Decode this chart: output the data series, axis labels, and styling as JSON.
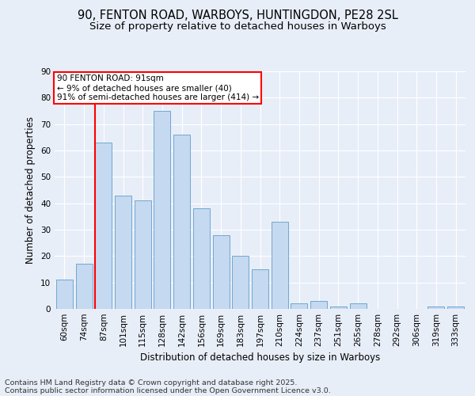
{
  "title_line1": "90, FENTON ROAD, WARBOYS, HUNTINGDON, PE28 2SL",
  "title_line2": "Size of property relative to detached houses in Warboys",
  "xlabel": "Distribution of detached houses by size in Warboys",
  "ylabel": "Number of detached properties",
  "categories": [
    "60sqm",
    "74sqm",
    "87sqm",
    "101sqm",
    "115sqm",
    "128sqm",
    "142sqm",
    "156sqm",
    "169sqm",
    "183sqm",
    "197sqm",
    "210sqm",
    "224sqm",
    "237sqm",
    "251sqm",
    "265sqm",
    "278sqm",
    "292sqm",
    "306sqm",
    "319sqm",
    "333sqm"
  ],
  "values": [
    11,
    17,
    63,
    43,
    41,
    75,
    66,
    38,
    28,
    20,
    15,
    33,
    2,
    3,
    1,
    2,
    0,
    0,
    0,
    1,
    1
  ],
  "bar_color": "#c5d9f0",
  "bar_edge_color": "#6fa8d0",
  "vline_index": 2,
  "vline_color": "red",
  "annotation_line1": "90 FENTON ROAD: 91sqm",
  "annotation_line2": "← 9% of detached houses are smaller (40)",
  "annotation_line3": "91% of semi-detached houses are larger (414) →",
  "annotation_box_facecolor": "white",
  "annotation_box_edgecolor": "red",
  "ylim": [
    0,
    90
  ],
  "yticks": [
    0,
    10,
    20,
    30,
    40,
    50,
    60,
    70,
    80,
    90
  ],
  "background_color": "#e8eef8",
  "grid_color": "white",
  "footer_line1": "Contains HM Land Registry data © Crown copyright and database right 2025.",
  "footer_line2": "Contains public sector information licensed under the Open Government Licence v3.0.",
  "title_fontsize": 10.5,
  "subtitle_fontsize": 9.5,
  "axis_label_fontsize": 8.5,
  "tick_fontsize": 7.5,
  "annotation_fontsize": 7.5,
  "footer_fontsize": 6.8
}
